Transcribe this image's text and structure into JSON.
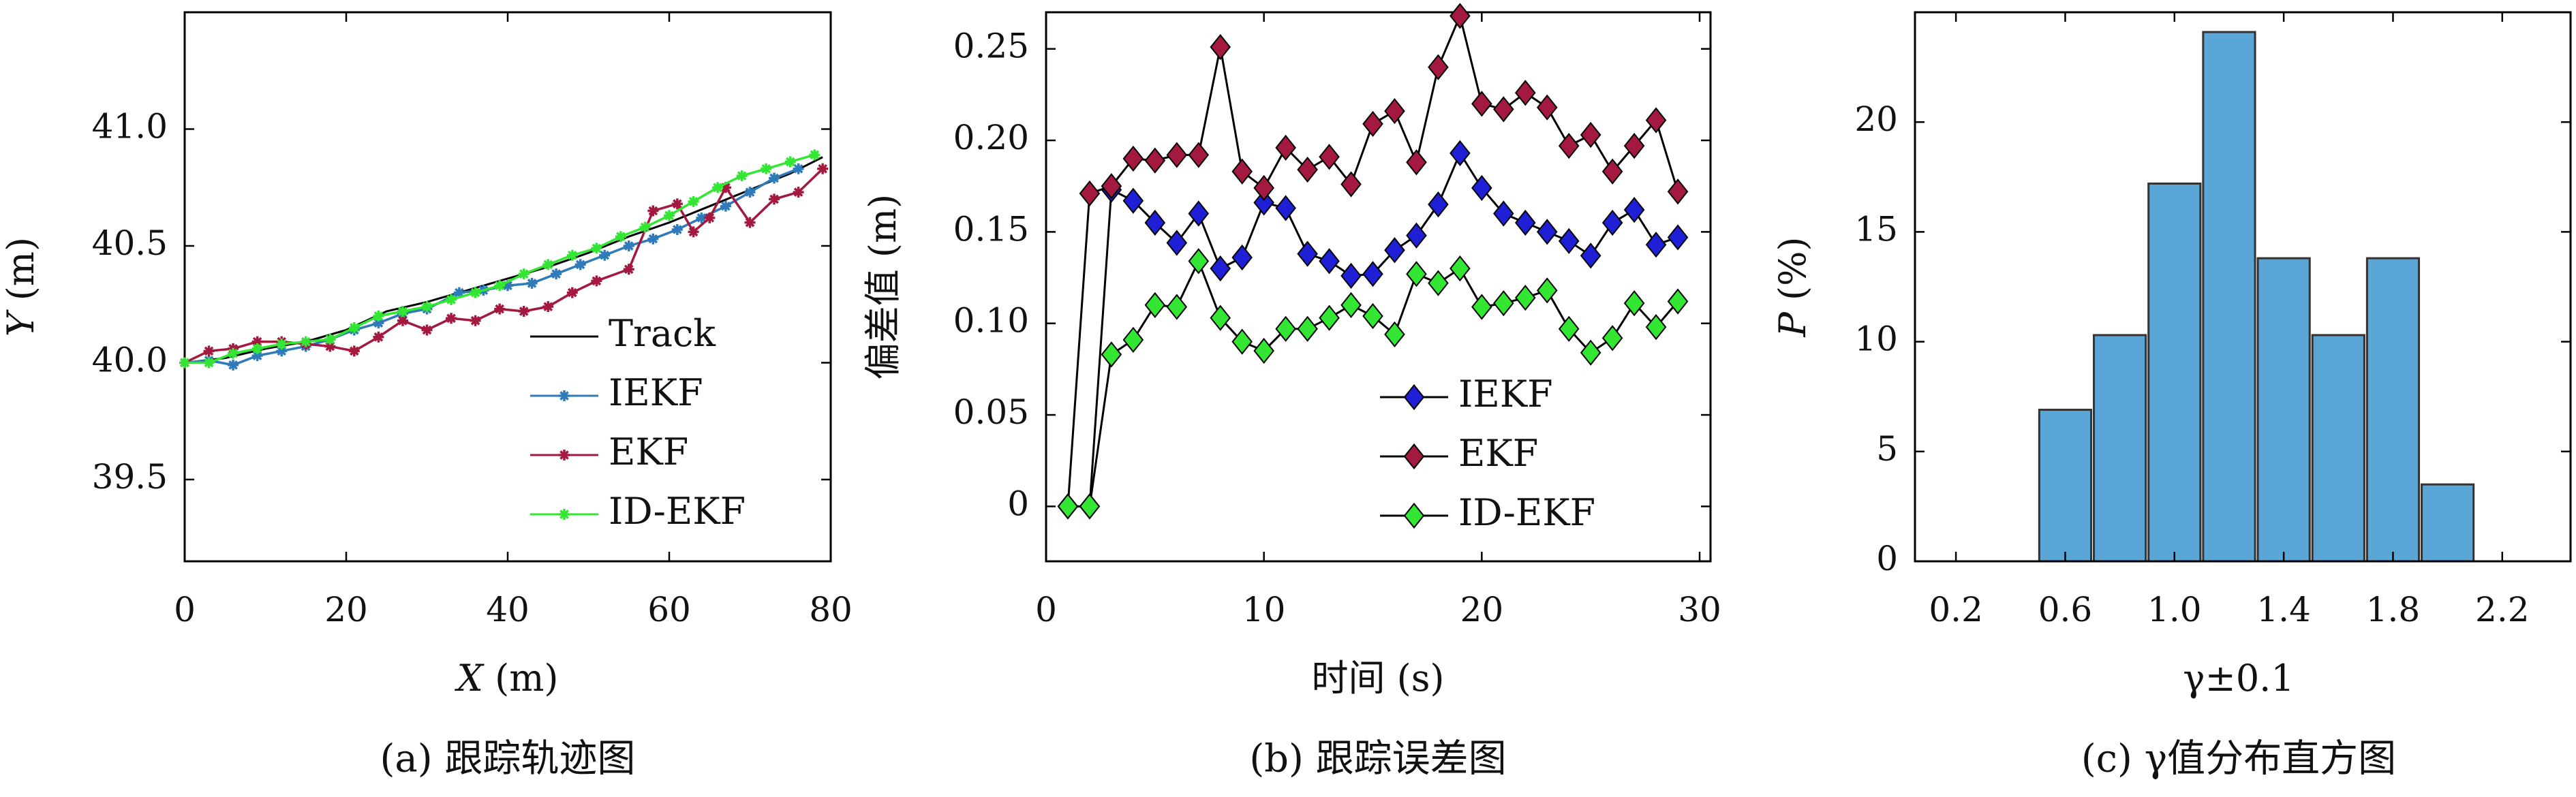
{
  "chart_data": [
    {
      "type": "line",
      "xlabel": "X (m)",
      "ylabel": "Y (m)",
      "xlim": [
        0,
        80
      ],
      "ylim": [
        39.15,
        41.5
      ],
      "xticks": [
        0,
        20,
        40,
        60,
        80
      ],
      "yticks": [
        39.5,
        40.0,
        40.5,
        41.0
      ],
      "legend_position": "lower-right",
      "caption": "(a) 跟踪轨迹图",
      "series": [
        {
          "name": "Track",
          "color": "#000000",
          "marker": "none",
          "x": [
            0,
            5,
            10,
            15,
            20,
            25,
            30,
            35,
            40,
            45,
            50,
            55,
            60,
            65,
            70,
            75,
            79
          ],
          "y": [
            40.0,
            40.02,
            40.06,
            40.09,
            40.14,
            40.22,
            40.26,
            40.31,
            40.36,
            40.41,
            40.47,
            40.54,
            40.6,
            40.67,
            40.74,
            40.81,
            40.88
          ]
        },
        {
          "name": "IEKF",
          "color": "#2f7ab9",
          "marker": "star",
          "x": [
            0,
            3,
            6,
            9,
            12,
            15,
            18,
            21,
            24,
            27,
            30,
            34,
            37,
            40,
            43,
            46,
            49,
            52,
            55,
            58,
            61,
            64,
            67,
            70,
            73,
            76
          ],
          "y": [
            40.0,
            40.01,
            39.99,
            40.03,
            40.05,
            40.07,
            40.1,
            40.14,
            40.17,
            40.21,
            40.23,
            40.3,
            40.31,
            40.33,
            40.34,
            40.38,
            40.42,
            40.46,
            40.5,
            40.53,
            40.57,
            40.62,
            40.67,
            40.73,
            40.79,
            40.83
          ]
        },
        {
          "name": "EKF",
          "color": "#a3193f",
          "marker": "star",
          "x": [
            0,
            3,
            6,
            9,
            12,
            15,
            18,
            21,
            24,
            27,
            30,
            33,
            36,
            39,
            42,
            45,
            48,
            51,
            55,
            58,
            61,
            63,
            65,
            67,
            70,
            73,
            76,
            79
          ],
          "y": [
            40.0,
            40.05,
            40.06,
            40.09,
            40.09,
            40.08,
            40.07,
            40.05,
            40.11,
            40.18,
            40.14,
            40.19,
            40.18,
            40.23,
            40.22,
            40.24,
            40.3,
            40.35,
            40.4,
            40.65,
            40.68,
            40.56,
            40.62,
            40.75,
            40.6,
            40.7,
            40.73,
            40.83
          ]
        },
        {
          "name": "ID-EKF",
          "color": "#33e633",
          "marker": "star",
          "x": [
            0,
            3,
            6,
            9,
            12,
            15,
            18,
            21,
            24,
            27,
            30,
            33,
            36,
            39,
            42,
            45,
            48,
            51,
            54,
            57,
            60,
            63,
            66,
            69,
            72,
            75,
            78
          ],
          "y": [
            40.0,
            40.0,
            40.04,
            40.06,
            40.08,
            40.09,
            40.1,
            40.15,
            40.2,
            40.22,
            40.24,
            40.27,
            40.3,
            40.33,
            40.38,
            40.42,
            40.46,
            40.49,
            40.54,
            40.58,
            40.63,
            40.69,
            40.75,
            40.8,
            40.83,
            40.86,
            40.89
          ]
        }
      ]
    },
    {
      "type": "line",
      "xlabel": "时间 (s)",
      "ylabel": "偏差值 (m)",
      "xlim": [
        0,
        30.5
      ],
      "ylim": [
        -0.03,
        0.27
      ],
      "xticks": [
        0,
        10,
        20,
        30
      ],
      "yticks": [
        0,
        0.05,
        0.1,
        0.15,
        0.2,
        0.25
      ],
      "ytick_labels": [
        "0",
        "0.05",
        "0.10",
        "0.15",
        "0.20",
        "0.25"
      ],
      "legend_position": "lower-right",
      "caption": "(b) 跟踪误差图",
      "x": [
        1,
        2,
        3,
        4,
        5,
        6,
        7,
        8,
        9,
        10,
        11,
        12,
        13,
        14,
        15,
        16,
        17,
        18,
        19,
        20,
        21,
        22,
        23,
        24,
        25,
        26,
        27,
        28,
        29
      ],
      "series": [
        {
          "name": "IEKF",
          "color": "#1f1fd6",
          "marker": "diamond",
          "values": [
            0,
            0,
            0.173,
            0.167,
            0.155,
            0.144,
            0.16,
            0.13,
            0.136,
            0.166,
            0.163,
            0.138,
            0.134,
            0.126,
            0.127,
            0.14,
            0.148,
            0.165,
            0.193,
            0.174,
            0.16,
            0.155,
            0.15,
            0.145,
            0.137,
            0.155,
            0.162,
            0.143,
            0.147
          ]
        },
        {
          "name": "EKF",
          "color": "#a3193f",
          "marker": "diamond",
          "values": [
            0,
            0.171,
            0.175,
            0.19,
            0.189,
            0.192,
            0.192,
            0.251,
            0.183,
            0.174,
            0.196,
            0.184,
            0.191,
            0.176,
            0.209,
            0.216,
            0.188,
            0.24,
            0.268,
            0.22,
            0.217,
            0.226,
            0.218,
            0.197,
            0.203,
            0.183,
            0.197,
            0.211,
            0.172
          ]
        },
        {
          "name": "ID-EKF",
          "color": "#33e633",
          "marker": "diamond",
          "values": [
            0,
            0,
            0.083,
            0.091,
            0.11,
            0.109,
            0.134,
            0.103,
            0.09,
            0.085,
            0.097,
            0.097,
            0.103,
            0.11,
            0.104,
            0.094,
            0.127,
            0.122,
            0.13,
            0.109,
            0.111,
            0.114,
            0.118,
            0.097,
            0.084,
            0.092,
            0.111,
            0.098,
            0.112
          ]
        }
      ]
    },
    {
      "type": "bar",
      "xlabel": "γ±0.1",
      "ylabel": "P (%)",
      "xlim": [
        0.05,
        2.45
      ],
      "ylim": [
        0,
        25
      ],
      "xticks": [
        0.2,
        0.6,
        1.0,
        1.4,
        1.8,
        2.2
      ],
      "xtick_labels": [
        "0.2",
        "0.6",
        "1.0",
        "1.4",
        "1.8",
        "2.2"
      ],
      "yticks": [
        0,
        5,
        10,
        15,
        20
      ],
      "bar_color": "#5aa7d7",
      "caption": "(c) γ值分布直方图",
      "bin_width": 0.2,
      "categories": [
        0.6,
        0.8,
        1.0,
        1.2,
        1.4,
        1.6,
        1.8,
        2.0
      ],
      "values": [
        6.9,
        10.3,
        17.2,
        24.1,
        13.8,
        10.3,
        13.8,
        3.5
      ]
    }
  ]
}
